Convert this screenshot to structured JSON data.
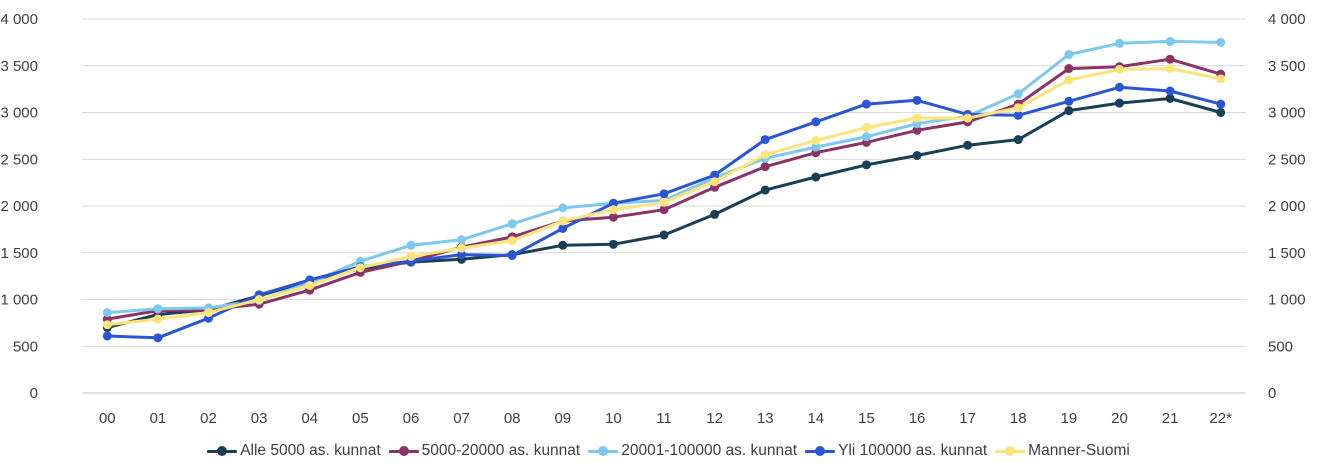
{
  "chart_data": {
    "type": "line",
    "title": "",
    "xlabel": "",
    "ylabel": "",
    "categories": [
      "00",
      "01",
      "02",
      "03",
      "04",
      "05",
      "06",
      "07",
      "08",
      "09",
      "10",
      "11",
      "12",
      "13",
      "14",
      "15",
      "16",
      "17",
      "18",
      "19",
      "20",
      "21",
      "22*"
    ],
    "ylim": [
      0,
      4000
    ],
    "yticks": [
      0,
      500,
      1000,
      1500,
      2000,
      2500,
      3000,
      3500,
      4000
    ],
    "ytick_labels": [
      "0",
      "500",
      "1 000",
      "1 500",
      "2 000",
      "2 500",
      "3 000",
      "3 500",
      "4 000"
    ],
    "secondary_axis": true,
    "grid": true,
    "legend_position": "bottom",
    "series": [
      {
        "name": "Alle 5000 as. kunnat",
        "color": "#173f56",
        "values": [
          700,
          840,
          890,
          1040,
          1200,
          1330,
          1400,
          1430,
          1480,
          1580,
          1590,
          1690,
          1910,
          2170,
          2310,
          2440,
          2540,
          2650,
          2710,
          3020,
          3100,
          3150,
          3000
        ]
      },
      {
        "name": "5000-20000 as. kunnat",
        "color": "#8b3366",
        "values": [
          790,
          880,
          890,
          950,
          1100,
          1290,
          1410,
          1560,
          1670,
          1840,
          1880,
          1960,
          2200,
          2420,
          2570,
          2680,
          2810,
          2900,
          3090,
          3470,
          3490,
          3570,
          3410
        ]
      },
      {
        "name": "20001-100000 as. kunnat",
        "color": "#7ec7ee",
        "values": [
          860,
          900,
          910,
          990,
          1180,
          1410,
          1580,
          1640,
          1810,
          1980,
          2030,
          2060,
          2300,
          2510,
          2630,
          2740,
          2880,
          2960,
          3200,
          3620,
          3740,
          3760,
          3750
        ]
      },
      {
        "name": "Yli 100000 as. kunnat",
        "color": "#2a56d4",
        "values": [
          610,
          590,
          800,
          1050,
          1210,
          1350,
          1410,
          1480,
          1470,
          1760,
          2030,
          2130,
          2330,
          2710,
          2900,
          3090,
          3130,
          2980,
          2970,
          3120,
          3270,
          3230,
          3090
        ]
      },
      {
        "name": "Manner-Suomi",
        "color": "#fbe57a",
        "values": [
          730,
          790,
          860,
          1000,
          1150,
          1340,
          1460,
          1550,
          1630,
          1840,
          1960,
          2040,
          2260,
          2550,
          2700,
          2840,
          2940,
          2940,
          3050,
          3350,
          3460,
          3470,
          3360
        ]
      }
    ]
  }
}
